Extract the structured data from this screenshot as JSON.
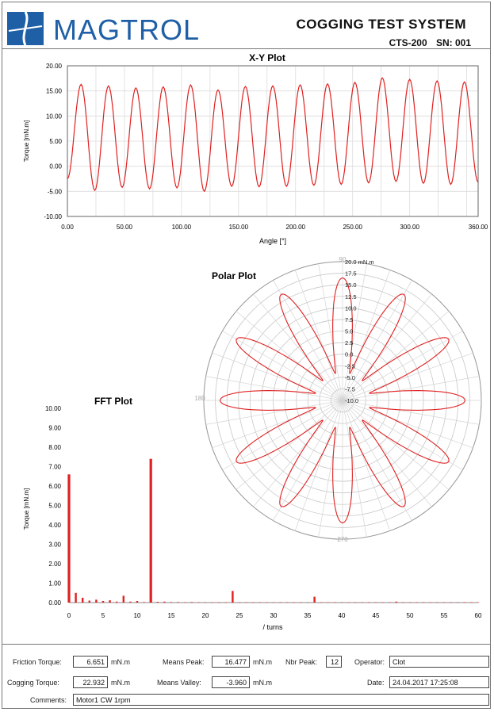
{
  "header": {
    "brand": "MAGTROL",
    "system_title": "COGGING TEST SYSTEM",
    "model": "CTS-200",
    "serial": "SN: 001"
  },
  "xy_plot": {
    "title": "X-Y Plot",
    "xlabel": "Angle [°]",
    "ylabel": "Torque [mN.m]",
    "xticks": [
      "0.00",
      "50.00",
      "100.00",
      "150.00",
      "200.00",
      "250.00",
      "300.00",
      "360.00"
    ],
    "yticks": [
      "20.00",
      "15.00",
      "10.00",
      "5.00",
      "0.00",
      "-5.00",
      "-10.00"
    ],
    "line_color": "#e02020"
  },
  "polar_plot": {
    "title": "Polar Plot",
    "angle_labels": [
      "90",
      "180",
      "270"
    ],
    "radial_labels": [
      "20.0 mN.m",
      "17.5",
      "15.0",
      "12.5",
      "10.0",
      "7.5",
      "5.0",
      "2.5",
      "0.0",
      "-2.5",
      "-5.0",
      "-7.5",
      "-10.0"
    ]
  },
  "fft_plot": {
    "title": "FFT Plot",
    "xlabel": "/ turns",
    "ylabel": "Torque [mN.m]",
    "xticks": [
      "0",
      "5",
      "10",
      "15",
      "20",
      "25",
      "30",
      "35",
      "40",
      "45",
      "50",
      "55",
      "60"
    ],
    "yticks": [
      "10.00",
      "9.00",
      "8.00",
      "7.00",
      "6.00",
      "5.00",
      "4.00",
      "3.00",
      "2.00",
      "1.00",
      "0.00"
    ]
  },
  "chart_data": [
    {
      "type": "line",
      "title": "X-Y Plot",
      "xlabel": "Angle [°]",
      "ylabel": "Torque [mN.m]",
      "xlim": [
        0,
        360
      ],
      "ylim": [
        -10,
        20
      ],
      "grid": true,
      "series": [
        {
          "x": [
            0,
            12,
            24,
            36,
            48,
            60,
            72,
            84,
            96,
            108,
            120,
            132,
            144,
            156,
            168,
            180,
            192,
            204,
            216,
            228,
            240,
            252,
            264,
            276,
            288,
            300,
            312,
            324,
            336,
            348,
            360
          ],
          "values": [
            -2.5,
            16.3,
            -4.8,
            16.0,
            -4.2,
            15.6,
            -4.5,
            15.8,
            -4.3,
            16.2,
            -5.0,
            15.2,
            -4.0,
            15.9,
            -4.1,
            16.0,
            -4.0,
            16.2,
            -3.8,
            16.4,
            -3.6,
            16.7,
            -3.3,
            17.6,
            -3.0,
            17.3,
            -3.4,
            17.0,
            -3.6,
            16.8,
            -3.2
          ]
        }
      ]
    },
    {
      "type": "polar",
      "title": "Polar Plot",
      "rlim": [
        -10,
        20
      ],
      "petals": 12,
      "peak": 16.477,
      "valley": -3.96
    },
    {
      "type": "bar",
      "title": "FFT Plot",
      "xlabel": "/ turns",
      "ylabel": "Torque [mN.m]",
      "xlim": [
        0,
        60
      ],
      "ylim": [
        0,
        10
      ],
      "x": [
        0,
        1,
        2,
        3,
        4,
        5,
        6,
        7,
        8,
        9,
        10,
        11,
        12,
        13,
        14,
        15,
        16,
        17,
        18,
        19,
        20,
        21,
        22,
        23,
        24,
        25,
        26,
        27,
        28,
        29,
        30,
        31,
        32,
        33,
        34,
        35,
        36,
        37,
        38,
        39,
        40,
        41,
        42,
        43,
        44,
        45,
        46,
        47,
        48,
        49,
        50,
        51,
        52,
        53,
        54,
        55,
        56,
        57,
        58,
        59,
        60
      ],
      "values": [
        6.6,
        0.5,
        0.25,
        0.1,
        0.15,
        0.08,
        0.12,
        0.05,
        0.35,
        0.05,
        0.08,
        0.03,
        7.4,
        0.04,
        0.05,
        0.03,
        0.03,
        0.02,
        0.03,
        0.02,
        0.02,
        0.02,
        0.02,
        0.02,
        0.6,
        0.02,
        0.02,
        0.02,
        0.02,
        0.02,
        0.02,
        0.02,
        0.02,
        0.02,
        0.02,
        0.02,
        0.3,
        0.02,
        0.02,
        0.02,
        0.02,
        0.02,
        0.02,
        0.02,
        0.02,
        0.02,
        0.02,
        0.02,
        0.05,
        0.02,
        0.02,
        0.02,
        0.02,
        0.02,
        0.02,
        0.02,
        0.02,
        0.02,
        0.02,
        0.02,
        0.02
      ]
    }
  ],
  "footer": {
    "friction_torque_label": "Friction Torque:",
    "friction_torque_value": "6.651",
    "cogging_torque_label": "Cogging Torque:",
    "cogging_torque_value": "22.932",
    "unit": "mN.m",
    "means_peak_label": "Means Peak:",
    "means_peak_value": "16.477",
    "means_valley_label": "Means Valley:",
    "means_valley_value": "-3.960",
    "nbr_peak_label": "Nbr Peak:",
    "nbr_peak_value": "12",
    "operator_label": "Operator:",
    "operator_value": "Clot",
    "date_label": "Date:",
    "date_value": "24.04.2017 17:25:08",
    "comments_label": "Comments:",
    "comments_value": "Motor1 CW 1rpm"
  }
}
